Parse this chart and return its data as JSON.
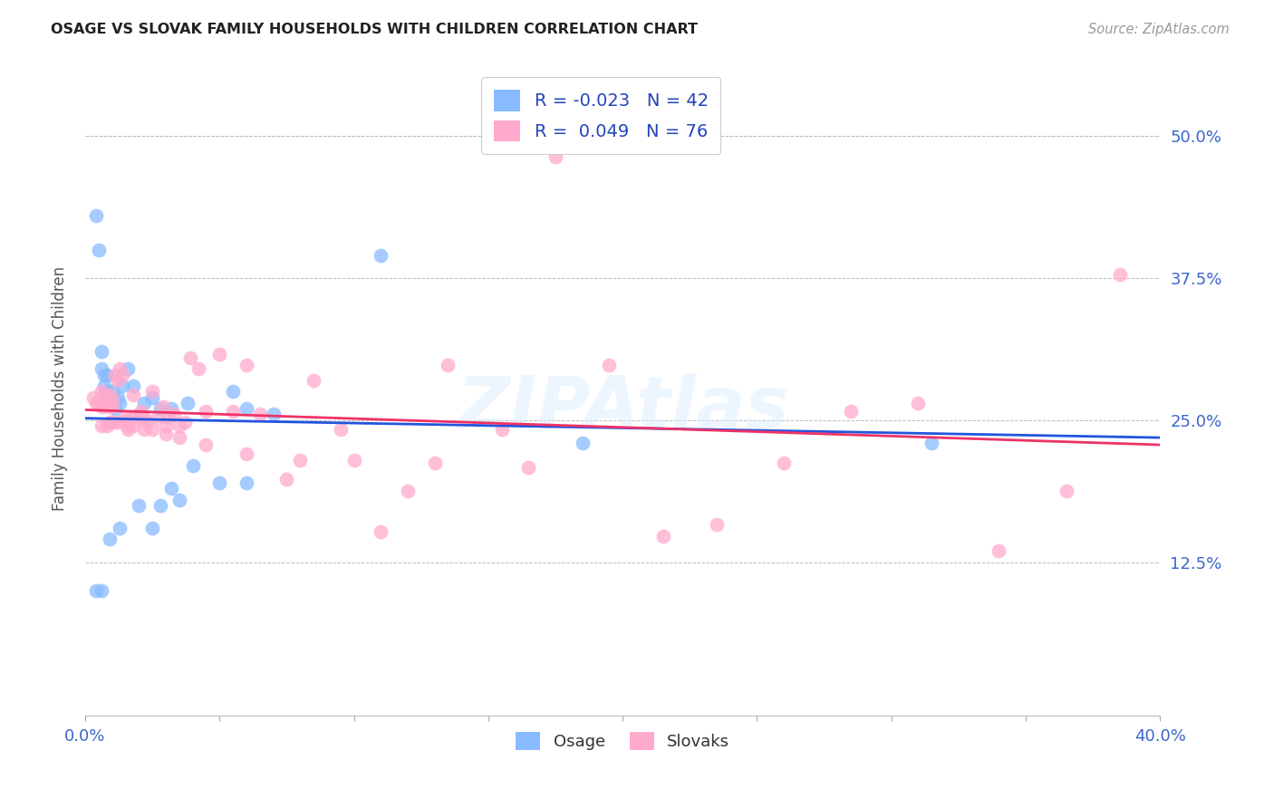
{
  "title": "OSAGE VS SLOVAK FAMILY HOUSEHOLDS WITH CHILDREN CORRELATION CHART",
  "source": "Source: ZipAtlas.com",
  "ylabel": "Family Households with Children",
  "xlim": [
    0.0,
    0.4
  ],
  "ylim": [
    -0.01,
    0.565
  ],
  "yticks": [
    0.125,
    0.25,
    0.375,
    0.5
  ],
  "ytick_labels": [
    "12.5%",
    "25.0%",
    "37.5%",
    "50.0%"
  ],
  "xticks": [
    0.0,
    0.05,
    0.1,
    0.15,
    0.2,
    0.25,
    0.3,
    0.35,
    0.4
  ],
  "osage_color": "#88bbff",
  "slovak_color": "#ffaacc",
  "osage_line_color": "#2255dd",
  "slovak_line_color": "#ee3366",
  "legend_R_osage": "-0.023",
  "legend_N_osage": "42",
  "legend_R_slovak": "0.049",
  "legend_N_slovak": "76",
  "osage_x": [
    0.004,
    0.005,
    0.006,
    0.006,
    0.007,
    0.007,
    0.007,
    0.008,
    0.008,
    0.008,
    0.009,
    0.009,
    0.009,
    0.01,
    0.01,
    0.01,
    0.011,
    0.011,
    0.012,
    0.012,
    0.013,
    0.013,
    0.014,
    0.015,
    0.016,
    0.017,
    0.018,
    0.02,
    0.022,
    0.025,
    0.028,
    0.032,
    0.038,
    0.055,
    0.06,
    0.07,
    0.11,
    0.185,
    0.025,
    0.028,
    0.032,
    0.315
  ],
  "osage_y": [
    0.43,
    0.4,
    0.31,
    0.295,
    0.29,
    0.28,
    0.265,
    0.29,
    0.275,
    0.26,
    0.27,
    0.265,
    0.27,
    0.265,
    0.27,
    0.275,
    0.26,
    0.27,
    0.27,
    0.275,
    0.265,
    0.28,
    0.265,
    0.295,
    0.28,
    0.27,
    0.275,
    0.265,
    0.26,
    0.275,
    0.26,
    0.26,
    0.265,
    0.275,
    0.255,
    0.26,
    0.395,
    0.23,
    0.155,
    0.175,
    0.19,
    0.23
  ],
  "osage_x2": [
    0.004,
    0.005,
    0.006,
    0.006,
    0.007,
    0.007,
    0.007,
    0.008,
    0.008,
    0.009,
    0.009,
    0.01,
    0.01,
    0.011,
    0.012,
    0.013,
    0.014,
    0.016,
    0.018,
    0.022,
    0.025,
    0.028,
    0.032,
    0.038,
    0.055,
    0.06,
    0.07,
    0.11,
    0.185,
    0.315,
    0.004,
    0.006,
    0.009,
    0.013,
    0.02,
    0.025,
    0.028,
    0.032,
    0.035,
    0.04,
    0.05,
    0.06
  ],
  "osage_y2": [
    0.43,
    0.4,
    0.31,
    0.295,
    0.29,
    0.28,
    0.265,
    0.29,
    0.275,
    0.27,
    0.265,
    0.275,
    0.27,
    0.26,
    0.27,
    0.265,
    0.28,
    0.295,
    0.28,
    0.265,
    0.27,
    0.26,
    0.26,
    0.265,
    0.275,
    0.26,
    0.255,
    0.395,
    0.23,
    0.23,
    0.1,
    0.1,
    0.145,
    0.155,
    0.175,
    0.155,
    0.175,
    0.19,
    0.18,
    0.21,
    0.195,
    0.195
  ],
  "slovak_x": [
    0.003,
    0.004,
    0.005,
    0.006,
    0.006,
    0.007,
    0.007,
    0.008,
    0.008,
    0.009,
    0.009,
    0.01,
    0.01,
    0.011,
    0.012,
    0.013,
    0.014,
    0.015,
    0.016,
    0.017,
    0.018,
    0.019,
    0.02,
    0.021,
    0.022,
    0.023,
    0.025,
    0.027,
    0.029,
    0.03,
    0.031,
    0.033,
    0.035,
    0.037,
    0.039,
    0.042,
    0.045,
    0.05,
    0.055,
    0.06,
    0.065,
    0.075,
    0.085,
    0.095,
    0.11,
    0.12,
    0.135,
    0.155,
    0.175,
    0.195,
    0.215,
    0.235,
    0.26,
    0.285,
    0.31,
    0.34,
    0.365,
    0.385,
    0.006,
    0.008,
    0.009,
    0.01,
    0.012,
    0.014,
    0.016,
    0.018,
    0.022,
    0.025,
    0.03,
    0.035,
    0.045,
    0.06,
    0.08,
    0.1,
    0.13,
    0.165
  ],
  "slovak_y": [
    0.27,
    0.265,
    0.265,
    0.262,
    0.275,
    0.265,
    0.272,
    0.262,
    0.268,
    0.265,
    0.272,
    0.262,
    0.268,
    0.29,
    0.285,
    0.295,
    0.29,
    0.252,
    0.245,
    0.252,
    0.272,
    0.252,
    0.255,
    0.258,
    0.252,
    0.248,
    0.275,
    0.252,
    0.262,
    0.245,
    0.252,
    0.255,
    0.245,
    0.248,
    0.305,
    0.295,
    0.258,
    0.308,
    0.258,
    0.298,
    0.255,
    0.198,
    0.285,
    0.242,
    0.152,
    0.188,
    0.298,
    0.242,
    0.482,
    0.298,
    0.148,
    0.158,
    0.212,
    0.258,
    0.265,
    0.135,
    0.188,
    0.378,
    0.245,
    0.245,
    0.248,
    0.248,
    0.248,
    0.248,
    0.242,
    0.245,
    0.242,
    0.242,
    0.238,
    0.235,
    0.228,
    0.22,
    0.215,
    0.215,
    0.212,
    0.208
  ]
}
